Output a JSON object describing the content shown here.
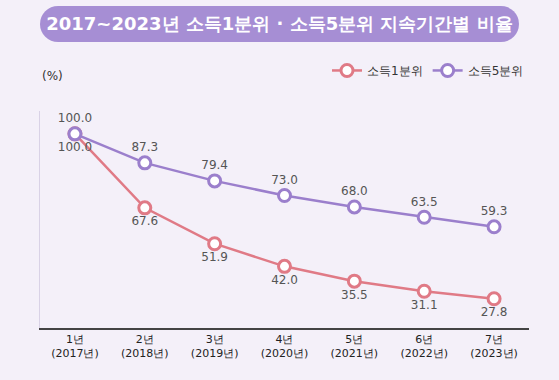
{
  "chart_data": {
    "type": "line",
    "title": "2017~2023년 소득1분위 · 소득5분위 지속기간별 비율",
    "y_label": "(%)",
    "categories": [
      "1년\n(2017년)",
      "2년\n(2018년)",
      "3년\n(2019년)",
      "4년\n(2020년)",
      "5년\n(2021년)",
      "6년\n(2022년)",
      "7년\n(2023년)"
    ],
    "series": [
      {
        "name": "소득1분위",
        "color": "#e07a86",
        "values": [
          100,
          67.6,
          51.9,
          42,
          35.5,
          31.1,
          27.8
        ],
        "value_labels": [
          "100.0",
          "67.6",
          "51.9",
          "42.0",
          "35.5",
          "31.1",
          "27.8"
        ]
      },
      {
        "name": "소득5분위",
        "color": "#9b7fcc",
        "values": [
          100,
          87.3,
          79.4,
          73,
          68,
          63.5,
          59.3
        ],
        "value_labels": [
          "100.0",
          "87.3",
          "79.4",
          "73.0",
          "68.0",
          "63.5",
          "59.3"
        ]
      }
    ],
    "ylim": [
      15,
      110
    ],
    "tick_labels": "x",
    "grid": false,
    "legend": "top right",
    "data_labels": true,
    "marker": "circle"
  }
}
